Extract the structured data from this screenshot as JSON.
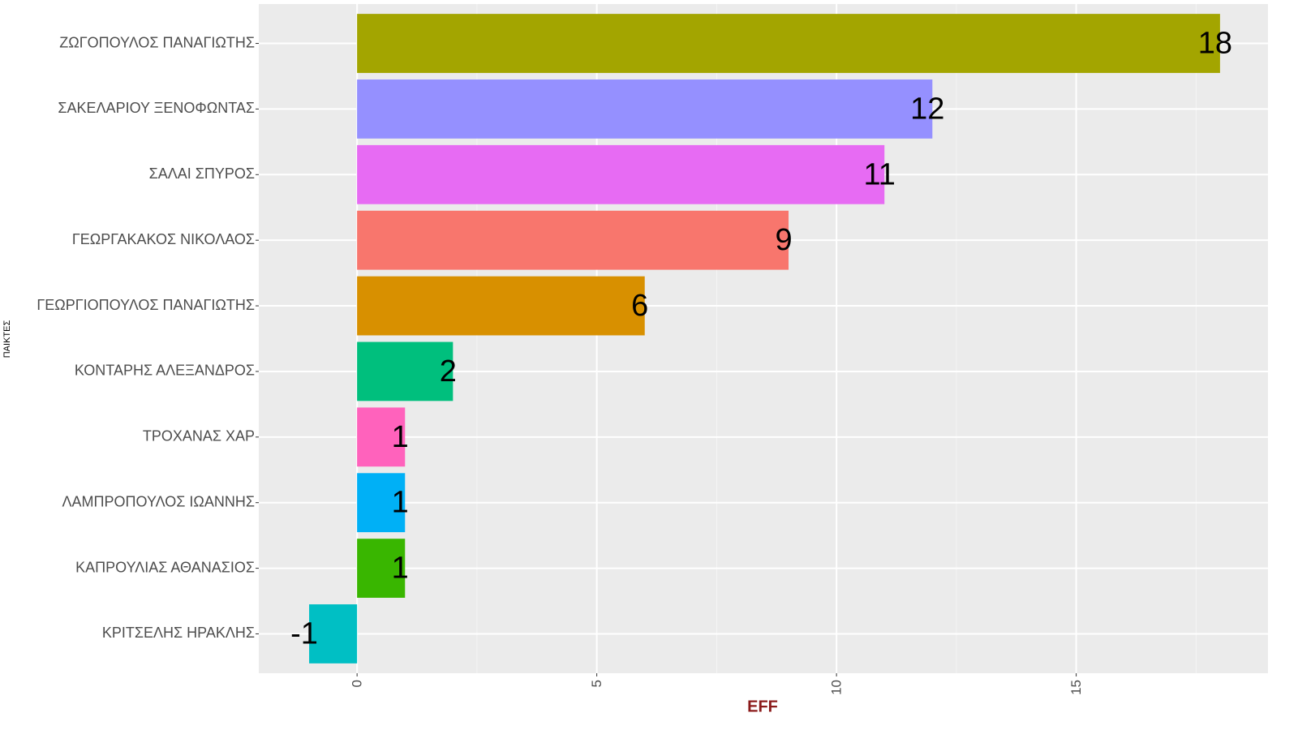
{
  "chart_data": {
    "type": "bar",
    "orientation": "horizontal",
    "x_label": "EFF",
    "y_label": "ΠΑΙΚΤΕΣ",
    "categories": [
      "ΖΩΓΟΠΟΥΛΟΣ ΠΑΝΑΓΙΩΤΗΣ",
      "ΣΑΚΕΛΑΡΙΟΥ ΞΕΝΟΦΩΝΤΑΣ",
      "ΣΑΛΑΙ ΣΠΥΡΟΣ",
      "ΓΕΩΡΓΑΚΑΚΟΣ ΝΙΚΟΛΑΟΣ",
      "ΓΕΩΡΓΙΟΠΟΥΛΟΣ ΠΑΝΑΓΙΩΤΗΣ",
      "ΚΟΝΤΑΡΗΣ ΑΛΕΞΑΝΔΡΟΣ",
      "ΤΡΟΧΑΝΑΣ ΧΑΡ",
      "ΛΑΜΠΡΟΠΟΥΛΟΣ ΙΩΑΝΝΗΣ",
      "ΚΑΠΡΟΥΛΙΑΣ ΑΘΑΝΑΣΙΟΣ",
      "ΚΡΙΤΣΕΛΗΣ ΗΡΑΚΛΗΣ"
    ],
    "values": [
      18,
      12,
      11,
      9,
      6,
      2,
      1,
      1,
      1,
      -1
    ],
    "colors": [
      "#a3a500",
      "#9590ff",
      "#e76bf3",
      "#f8766d",
      "#d89000",
      "#00bf7d",
      "#ff62bc",
      "#00b0f6",
      "#39b600",
      "#00bfc4"
    ],
    "xlim": [
      -2.05,
      19.0
    ],
    "xticks": [
      0,
      5,
      10,
      15
    ],
    "minor_grid": [
      2.5,
      7.5,
      12.5,
      17.5
    ],
    "grid": true
  }
}
